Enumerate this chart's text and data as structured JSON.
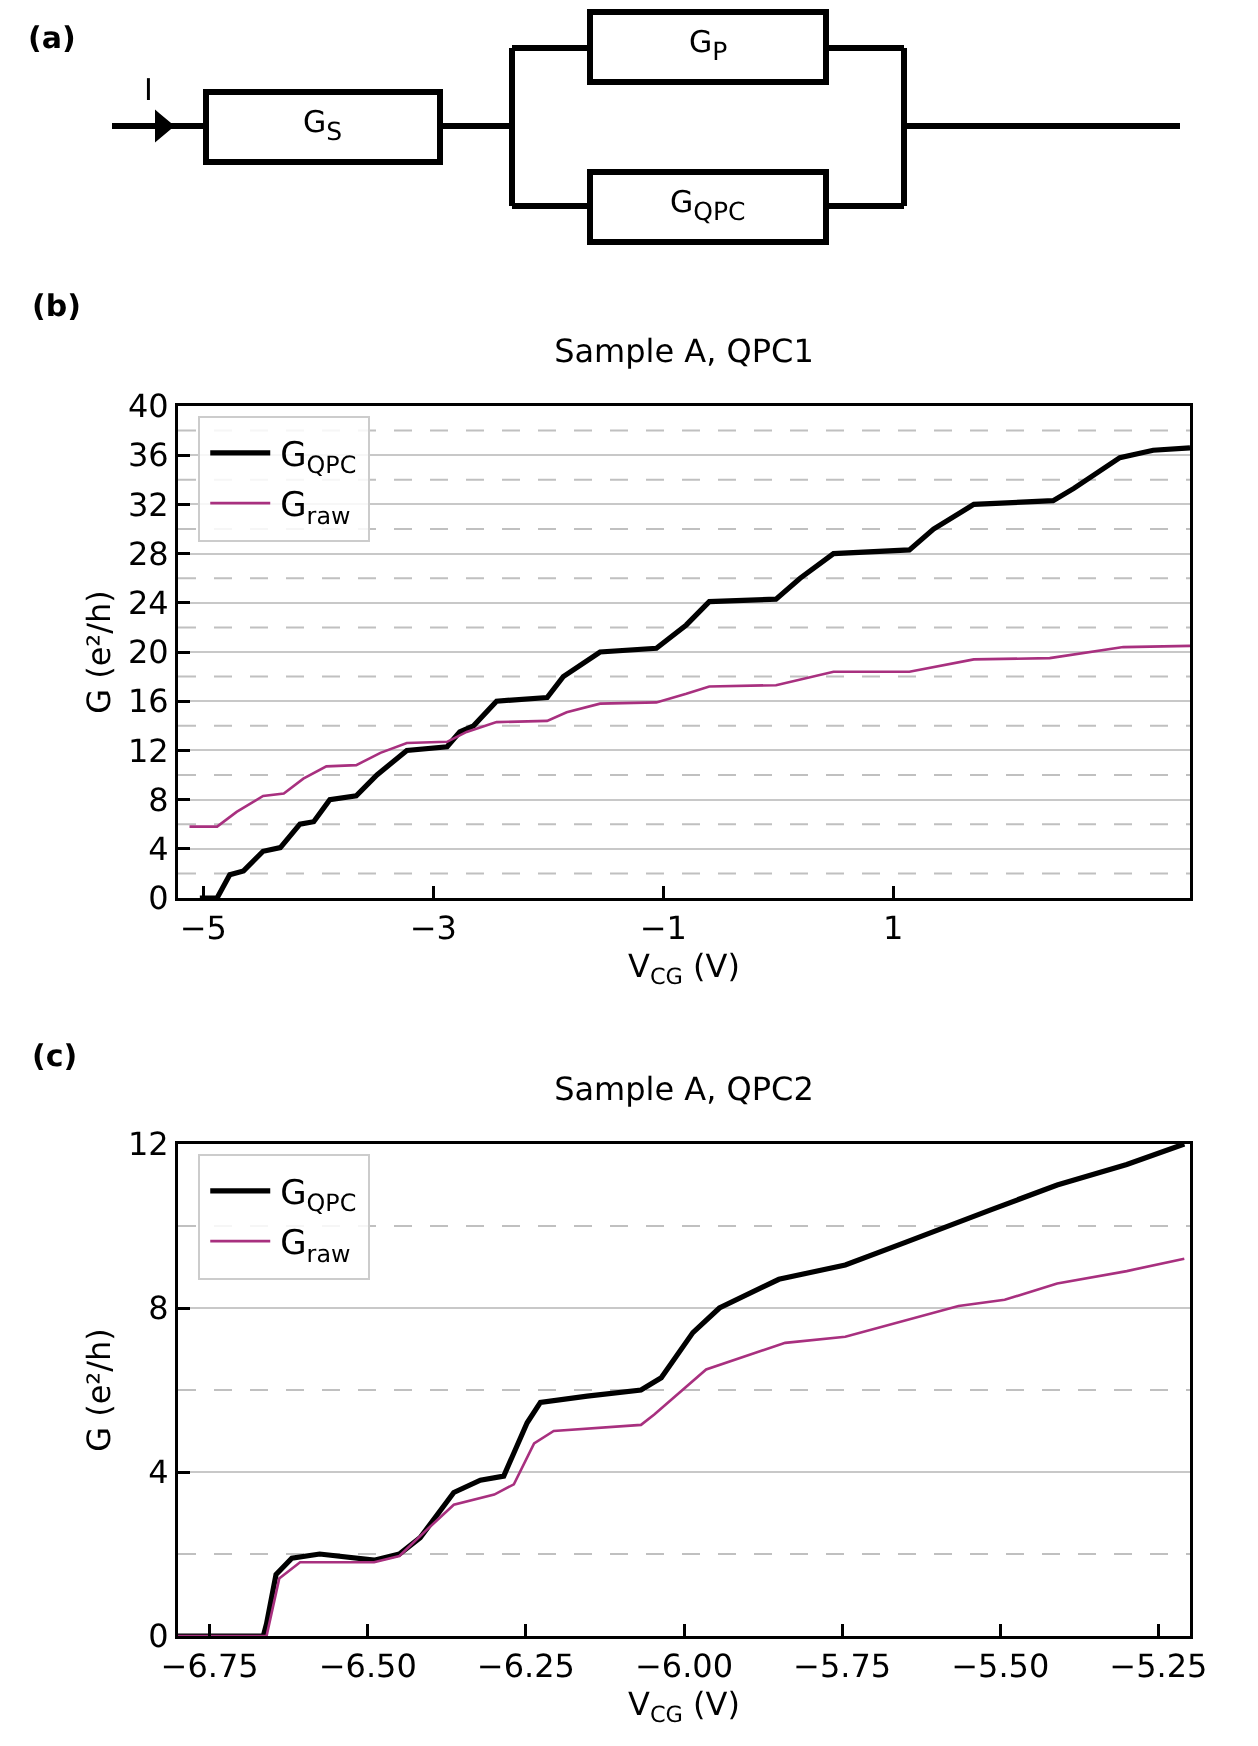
{
  "chart_data": [
    {
      "type": "other",
      "annotations": [
        "(a)",
        "I",
        "G$_{S}$",
        "G$_{P}$",
        "G$_{QPC}$"
      ]
    },
    {
      "type": "line",
      "title": "Sample A, QPC1",
      "xlabel": "V$_{CG}$ (V)",
      "ylabel": "G (e²/h)",
      "annotations": [
        "(b)"
      ],
      "xlim": [
        -5.22,
        3.58
      ],
      "xticks": [
        {
          "value": -5,
          "label": "−5"
        },
        {
          "value": -3,
          "label": "−3"
        },
        {
          "value": -1,
          "label": "−1"
        },
        1
      ],
      "ylim": [
        0,
        40
      ],
      "yticks": [
        0,
        4,
        8,
        12,
        16,
        20,
        24,
        28,
        32,
        36,
        40
      ],
      "grid": "y",
      "legend": "top left",
      "ref_lines": [
        {
          "axis": "y",
          "value": 2,
          "color": "#c0c0c0",
          "line_style": "dashed"
        },
        {
          "axis": "y",
          "value": 6,
          "color": "#c0c0c0",
          "line_style": "dashed"
        },
        {
          "axis": "y",
          "value": 10,
          "color": "#c0c0c0",
          "line_style": "dashed"
        },
        {
          "axis": "y",
          "value": 14,
          "color": "#c0c0c0",
          "line_style": "dashed"
        },
        {
          "axis": "y",
          "value": 18,
          "color": "#c0c0c0",
          "line_style": "dashed"
        },
        {
          "axis": "y",
          "value": 22,
          "color": "#c0c0c0",
          "line_style": "dashed"
        },
        {
          "axis": "y",
          "value": 26,
          "color": "#c0c0c0",
          "line_style": "dashed"
        },
        {
          "axis": "y",
          "value": 30,
          "color": "#c0c0c0",
          "line_style": "dashed"
        },
        {
          "axis": "y",
          "value": 34,
          "color": "#c0c0c0",
          "line_style": "dashed"
        },
        {
          "axis": "y",
          "value": 38,
          "color": "#c0c0c0",
          "line_style": "dashed"
        }
      ],
      "series": [
        {
          "name": "G$_{QPC}$",
          "color": "#000000",
          "x": [
            -5.03,
            -4.88,
            -4.77,
            -4.65,
            -4.48,
            -4.33,
            -4.16,
            -4.04,
            -3.9,
            -3.67,
            -3.49,
            -3.23,
            -2.88,
            -2.77,
            -2.65,
            -2.45,
            -2.01,
            -1.87,
            -1.55,
            -1.06,
            -0.8,
            -0.6,
            -0.02,
            0.19,
            0.48,
            1.14,
            1.35,
            1.7,
            2.39,
            2.57,
            2.97,
            3.26,
            3.58
          ],
          "values": [
            0,
            0,
            1.9,
            2.2,
            3.8,
            4.1,
            6,
            6.2,
            8,
            8.3,
            10,
            12,
            12.3,
            13.5,
            14,
            16,
            16.3,
            18,
            20,
            20.3,
            22.2,
            24.1,
            24.3,
            26,
            28,
            28.3,
            30,
            32,
            32.3,
            33.3,
            35.8,
            36.4,
            36.6
          ]
        },
        {
          "name": "G$_{raw}$",
          "color": "#a8307f",
          "x": [
            -5.12,
            -4.88,
            -4.71,
            -4.48,
            -4.3,
            -4.13,
            -3.93,
            -3.67,
            -3.46,
            -3.23,
            -2.88,
            -2.71,
            -2.45,
            -2.01,
            -1.84,
            -1.55,
            -1.06,
            -0.8,
            -0.6,
            -0.02,
            0.48,
            1.14,
            1.7,
            2.36,
            3.0,
            3.58
          ],
          "values": [
            5.8,
            5.8,
            7,
            8.3,
            8.5,
            9.7,
            10.7,
            10.8,
            11.8,
            12.6,
            12.7,
            13.5,
            14.3,
            14.4,
            15.1,
            15.8,
            15.9,
            16.6,
            17.2,
            17.3,
            18.4,
            18.4,
            19.4,
            19.5,
            20.4,
            20.5
          ]
        }
      ]
    },
    {
      "type": "line",
      "title": "Sample A, QPC2",
      "xlabel": "V$_{CG}$ (V)",
      "ylabel": "G (e²/h)",
      "annotations": [
        "(c)"
      ],
      "xlim": [
        -6.8,
        -5.2
      ],
      "xticks": [
        {
          "value": -6.75,
          "label": "−6.75"
        },
        {
          "value": -6.5,
          "label": "−6.50"
        },
        {
          "value": -6.25,
          "label": "−6.25"
        },
        {
          "value": -6,
          "label": "−6.00"
        },
        {
          "value": -5.75,
          "label": "−5.75"
        },
        {
          "value": -5.5,
          "label": "−5.50"
        },
        {
          "value": -5.25,
          "label": "−5.25"
        }
      ],
      "ylim": [
        0,
        12
      ],
      "yticks": [
        0,
        4,
        8,
        12
      ],
      "grid": "y",
      "legend": "top left",
      "ref_lines": [
        {
          "axis": "y",
          "value": 2,
          "color": "#c0c0c0",
          "line_style": "dashed"
        },
        {
          "axis": "y",
          "value": 6,
          "color": "#c0c0c0",
          "line_style": "dashed"
        },
        {
          "axis": "y",
          "value": 10,
          "color": "#c0c0c0",
          "line_style": "dashed"
        }
      ],
      "series": [
        {
          "name": "G$_{QPC}$",
          "color": "#000000",
          "x": [
            -6.8,
            -6.665,
            -6.66,
            -6.645,
            -6.62,
            -6.576,
            -6.49,
            -6.45,
            -6.417,
            -6.364,
            -6.322,
            -6.285,
            -6.248,
            -6.227,
            -6.153,
            -6.068,
            -6.036,
            -5.986,
            -5.944,
            -5.85,
            -5.745,
            -5.65,
            -5.514,
            -5.41,
            -5.3,
            -5.209
          ],
          "values": [
            0,
            0,
            0.3,
            1.5,
            1.9,
            2.0,
            1.85,
            2.0,
            2.4,
            3.5,
            3.8,
            3.9,
            5.2,
            5.7,
            5.85,
            6.0,
            6.3,
            7.4,
            8.0,
            8.7,
            9.05,
            9.6,
            10.4,
            11.0,
            11.5,
            12.0
          ]
        },
        {
          "name": "G$_{raw}$",
          "color": "#a8307f",
          "x": [
            -6.8,
            -6.66,
            -6.64,
            -6.607,
            -6.49,
            -6.45,
            -6.406,
            -6.364,
            -6.3,
            -6.269,
            -6.237,
            -6.206,
            -6.068,
            -6.047,
            -5.965,
            -5.84,
            -5.745,
            -5.566,
            -5.493,
            -5.41,
            -5.3,
            -5.209
          ],
          "values": [
            0,
            0,
            1.4,
            1.8,
            1.8,
            1.95,
            2.6,
            3.2,
            3.45,
            3.7,
            4.7,
            5.0,
            5.15,
            5.4,
            6.5,
            7.15,
            7.3,
            8.05,
            8.2,
            8.6,
            8.9,
            9.2
          ]
        }
      ]
    }
  ]
}
